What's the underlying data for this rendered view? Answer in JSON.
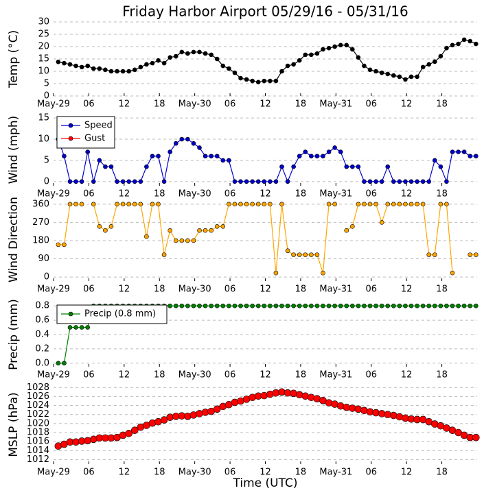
{
  "chart_data": [
    {
      "type": "line",
      "title": "Friday Harbor Airport 05/29/16 - 05/31/16",
      "ylabel": "Temp (°C)",
      "x": [
        0.8,
        1.8,
        2.8,
        3.8,
        4.8,
        5.8,
        6.8,
        7.8,
        8.8,
        9.8,
        10.8,
        11.8,
        12.8,
        13.8,
        14.8,
        15.8,
        16.8,
        17.8,
        18.8,
        19.8,
        20.8,
        21.8,
        22.8,
        23.8,
        24.8,
        25.8,
        26.8,
        27.8,
        28.8,
        29.8,
        30.8,
        31.8,
        32.8,
        33.8,
        34.8,
        35.8,
        36.8,
        37.8,
        38.8,
        39.8,
        40.8,
        41.8,
        42.8,
        43.8,
        44.8,
        45.8,
        46.8,
        47.8,
        48.8,
        49.8,
        50.8,
        51.8,
        52.8,
        53.8,
        54.8,
        55.8,
        56.8,
        57.8,
        58.8,
        59.8,
        60.8,
        61.8,
        62.8,
        63.8,
        64.8,
        65.8,
        66.8,
        67.8,
        68.8,
        69.8,
        70.8,
        71.8
      ],
      "series": [
        {
          "name": "Temp",
          "color": "#000000",
          "values": [
            13.8,
            13.3,
            12.8,
            12.2,
            11.7,
            12.2,
            11.1,
            11.1,
            10.6,
            10.0,
            10.0,
            10.0,
            10.0,
            10.6,
            11.7,
            12.8,
            13.3,
            14.4,
            13.3,
            15.6,
            16.1,
            17.8,
            17.2,
            17.8,
            17.8,
            17.2,
            16.7,
            15.0,
            12.2,
            11.1,
            9.4,
            7.2,
            6.7,
            6.1,
            5.6,
            6.1,
            6.1,
            6.1,
            10.0,
            12.2,
            12.8,
            14.4,
            16.7,
            16.7,
            17.2,
            18.9,
            19.4,
            20.0,
            20.6,
            20.6,
            18.9,
            15.6,
            12.2,
            10.6,
            10.0,
            9.4,
            8.9,
            8.3,
            7.8,
            6.7,
            7.8,
            7.8,
            11.7,
            12.8,
            13.9,
            16.1,
            19.4,
            20.6,
            21.1,
            22.8,
            22.2,
            21.1
          ]
        }
      ],
      "xlim": [
        0,
        72
      ],
      "xticks": [
        {
          "value": 0,
          "label": "May-29"
        },
        {
          "value": 6,
          "label": "06"
        },
        {
          "value": 12,
          "label": "12"
        },
        {
          "value": 18,
          "label": "18"
        },
        {
          "value": 24,
          "label": "May-30"
        },
        {
          "value": 30,
          "label": "06"
        },
        {
          "value": 36,
          "label": "12"
        },
        {
          "value": 42,
          "label": "18"
        },
        {
          "value": 48,
          "label": "May-31"
        },
        {
          "value": 54,
          "label": "06"
        },
        {
          "value": 60,
          "label": "12"
        },
        {
          "value": 66,
          "label": "18"
        }
      ],
      "ylim": [
        0,
        30
      ],
      "yticks": [
        0,
        5,
        10,
        15,
        20,
        25,
        30
      ],
      "grid": true
    },
    {
      "type": "line",
      "ylabel": "Wind (mph)",
      "legend": "upper left",
      "x": [
        0.8,
        1.8,
        2.8,
        3.8,
        4.8,
        5.8,
        6.8,
        7.8,
        8.8,
        9.8,
        10.8,
        11.8,
        12.8,
        13.8,
        14.8,
        15.8,
        16.8,
        17.8,
        18.8,
        19.8,
        20.8,
        21.8,
        22.8,
        23.8,
        24.8,
        25.8,
        26.8,
        27.8,
        28.8,
        29.8,
        30.8,
        31.8,
        32.8,
        33.8,
        34.8,
        35.8,
        36.8,
        37.8,
        38.8,
        39.8,
        40.8,
        41.8,
        42.8,
        43.8,
        44.8,
        45.8,
        46.8,
        47.8,
        48.8,
        49.8,
        50.8,
        51.8,
        52.8,
        53.8,
        54.8,
        55.8,
        56.8,
        57.8,
        58.8,
        59.8,
        60.8,
        61.8,
        62.8,
        63.8,
        64.8,
        65.8,
        66.8,
        67.8,
        68.8,
        69.8,
        70.8,
        71.8
      ],
      "series": [
        {
          "name": "Speed",
          "color": "#0000cc",
          "values": [
            10,
            6,
            0,
            0,
            0,
            7,
            0,
            5,
            3.5,
            3.5,
            0,
            0,
            0,
            0,
            0,
            3.5,
            6,
            6,
            0,
            7,
            9,
            10,
            10,
            9,
            8,
            6,
            6,
            6,
            5,
            5,
            0,
            0,
            0,
            0,
            0,
            0,
            0,
            0,
            3.5,
            0,
            3.5,
            6,
            7,
            6,
            6,
            6,
            7,
            8,
            7,
            3.5,
            3.5,
            3.5,
            0,
            0,
            0,
            0,
            3.5,
            0,
            0,
            0,
            0,
            0,
            0,
            0,
            5,
            3.5,
            0,
            7,
            7,
            7,
            6,
            6
          ]
        },
        {
          "name": "Gust",
          "color": "#ff0000",
          "values": [
            null,
            null,
            null,
            null,
            null,
            null,
            null,
            null,
            null,
            null,
            null,
            null,
            null,
            null,
            null,
            null,
            null,
            null,
            null,
            null,
            null,
            null,
            null,
            null,
            null,
            null,
            null,
            null,
            null,
            null,
            null,
            null,
            null,
            null,
            null,
            null,
            null,
            null,
            null,
            null,
            null,
            null,
            null,
            null,
            null,
            null,
            null,
            null,
            null,
            null,
            null,
            null,
            null,
            null,
            null,
            null,
            null,
            null,
            null,
            null,
            null,
            null,
            null,
            null,
            null,
            null,
            null,
            null,
            null,
            null,
            null,
            null
          ]
        }
      ],
      "xlim": [
        0,
        72
      ],
      "xticks": [
        {
          "value": 0,
          "label": "May-29"
        },
        {
          "value": 6,
          "label": "06"
        },
        {
          "value": 12,
          "label": "12"
        },
        {
          "value": 18,
          "label": "18"
        },
        {
          "value": 24,
          "label": "May-30"
        },
        {
          "value": 30,
          "label": "06"
        },
        {
          "value": 36,
          "label": "12"
        },
        {
          "value": 42,
          "label": "18"
        },
        {
          "value": 48,
          "label": "May-31"
        },
        {
          "value": 54,
          "label": "06"
        },
        {
          "value": 60,
          "label": "12"
        },
        {
          "value": 66,
          "label": "18"
        }
      ],
      "ylim": [
        -1,
        16
      ],
      "yticks": [
        0,
        5,
        10,
        15
      ],
      "grid": true
    },
    {
      "type": "line",
      "ylabel": "Wind Direction",
      "x": [
        0.8,
        1.8,
        2.8,
        3.8,
        4.8,
        5.8,
        6.8,
        7.8,
        8.8,
        9.8,
        10.8,
        11.8,
        12.8,
        13.8,
        14.8,
        15.8,
        16.8,
        17.8,
        18.8,
        19.8,
        20.8,
        21.8,
        22.8,
        23.8,
        24.8,
        25.8,
        26.8,
        27.8,
        28.8,
        29.8,
        30.8,
        31.8,
        32.8,
        33.8,
        34.8,
        35.8,
        36.8,
        37.8,
        38.8,
        39.8,
        40.8,
        41.8,
        42.8,
        43.8,
        44.8,
        45.8,
        46.8,
        47.8,
        48.8,
        49.8,
        50.8,
        51.8,
        52.8,
        53.8,
        54.8,
        55.8,
        56.8,
        57.8,
        58.8,
        59.8,
        60.8,
        61.8,
        62.8,
        63.8,
        64.8,
        65.8,
        66.8,
        67.8,
        68.8,
        69.8,
        70.8,
        71.8
      ],
      "series": [
        {
          "name": "Direction",
          "color": "#ffa500",
          "values": [
            160,
            160,
            360,
            360,
            360,
            null,
            360,
            250,
            230,
            250,
            360,
            360,
            360,
            360,
            360,
            200,
            360,
            360,
            110,
            230,
            180,
            180,
            180,
            180,
            230,
            230,
            230,
            250,
            250,
            360,
            360,
            360,
            360,
            360,
            360,
            360,
            360,
            20,
            360,
            130,
            110,
            110,
            110,
            110,
            110,
            20,
            360,
            360,
            null,
            230,
            250,
            360,
            360,
            360,
            360,
            270,
            360,
            360,
            360,
            360,
            360,
            360,
            360,
            110,
            110,
            360,
            360,
            20,
            null,
            null,
            110,
            110
          ]
        }
      ],
      "xlim": [
        0,
        72
      ],
      "xticks": [
        {
          "value": 0,
          "label": "May-29"
        },
        {
          "value": 6,
          "label": "06"
        },
        {
          "value": 12,
          "label": "12"
        },
        {
          "value": 18,
          "label": "18"
        },
        {
          "value": 24,
          "label": "May-30"
        },
        {
          "value": 30,
          "label": "06"
        },
        {
          "value": 36,
          "label": "12"
        },
        {
          "value": 42,
          "label": "18"
        },
        {
          "value": 48,
          "label": "May-31"
        },
        {
          "value": 54,
          "label": "06"
        },
        {
          "value": 60,
          "label": "12"
        },
        {
          "value": 66,
          "label": "18"
        }
      ],
      "ylim": [
        -20,
        390
      ],
      "yticks": [
        0,
        90,
        180,
        270,
        360
      ],
      "grid": true
    },
    {
      "type": "line",
      "ylabel": "Precip (mm)",
      "legend": "upper left",
      "x": [
        0.8,
        1.8,
        2.8,
        3.8,
        4.8,
        5.8,
        6.8,
        7.8,
        8.8,
        9.8,
        10.8,
        11.8,
        12.8,
        13.8,
        14.8,
        15.8,
        16.8,
        17.8,
        18.8,
        19.8,
        20.8,
        21.8,
        22.8,
        23.8,
        24.8,
        25.8,
        26.8,
        27.8,
        28.8,
        29.8,
        30.8,
        31.8,
        32.8,
        33.8,
        34.8,
        35.8,
        36.8,
        37.8,
        38.8,
        39.8,
        40.8,
        41.8,
        42.8,
        43.8,
        44.8,
        45.8,
        46.8,
        47.8,
        48.8,
        49.8,
        50.8,
        51.8,
        52.8,
        53.8,
        54.8,
        55.8,
        56.8,
        57.8,
        58.8,
        59.8,
        60.8,
        61.8,
        62.8,
        63.8,
        64.8,
        65.8,
        66.8,
        67.8,
        68.8,
        69.8,
        70.8,
        71.8
      ],
      "series": [
        {
          "name": "Precip (0.8 mm)",
          "color": "#008000",
          "values": [
            0,
            0,
            0.5,
            0.5,
            0.5,
            0.5,
            0.8,
            0.8,
            0.8,
            0.8,
            0.8,
            0.8,
            0.8,
            0.8,
            0.8,
            0.8,
            0.8,
            0.8,
            0.8,
            0.8,
            0.8,
            0.8,
            0.8,
            0.8,
            0.8,
            0.8,
            0.8,
            0.8,
            0.8,
            0.8,
            0.8,
            0.8,
            0.8,
            0.8,
            0.8,
            0.8,
            0.8,
            0.8,
            0.8,
            0.8,
            0.8,
            0.8,
            0.8,
            0.8,
            0.8,
            0.8,
            0.8,
            0.8,
            0.8,
            0.8,
            0.8,
            0.8,
            0.8,
            0.8,
            0.8,
            0.8,
            0.8,
            0.8,
            0.8,
            0.8,
            0.8,
            0.8,
            0.8,
            0.8,
            0.8,
            0.8,
            0.8,
            0.8,
            0.8,
            0.8,
            0.8,
            0.8
          ]
        }
      ],
      "xlim": [
        0,
        72
      ],
      "xticks": [
        {
          "value": 0,
          "label": "May-29"
        },
        {
          "value": 6,
          "label": "06"
        },
        {
          "value": 12,
          "label": "12"
        },
        {
          "value": 18,
          "label": "18"
        },
        {
          "value": 24,
          "label": "May-30"
        },
        {
          "value": 30,
          "label": "06"
        },
        {
          "value": 36,
          "label": "12"
        },
        {
          "value": 42,
          "label": "18"
        },
        {
          "value": 48,
          "label": "May-31"
        },
        {
          "value": 54,
          "label": "06"
        },
        {
          "value": 60,
          "label": "12"
        },
        {
          "value": 66,
          "label": "18"
        }
      ],
      "ylim": [
        -0.05,
        0.85
      ],
      "yticks": [
        {
          "value": 0,
          "label": "0.0"
        },
        0.2,
        0.4,
        0.6,
        0.8
      ],
      "grid": true
    },
    {
      "type": "line",
      "ylabel": "MSLP (hPa)",
      "xlabel": "Time (UTC)",
      "x": [
        0.8,
        1.8,
        2.8,
        3.8,
        4.8,
        5.8,
        6.8,
        7.8,
        8.8,
        9.8,
        10.8,
        11.8,
        12.8,
        13.8,
        14.8,
        15.8,
        16.8,
        17.8,
        18.8,
        19.8,
        20.8,
        21.8,
        22.8,
        23.8,
        24.8,
        25.8,
        26.8,
        27.8,
        28.8,
        29.8,
        30.8,
        31.8,
        32.8,
        33.8,
        34.8,
        35.8,
        36.8,
        37.8,
        38.8,
        39.8,
        40.8,
        41.8,
        42.8,
        43.8,
        44.8,
        45.8,
        46.8,
        47.8,
        48.8,
        49.8,
        50.8,
        51.8,
        52.8,
        53.8,
        54.8,
        55.8,
        56.8,
        57.8,
        58.8,
        59.8,
        60.8,
        61.8,
        62.8,
        63.8,
        64.8,
        65.8,
        66.8,
        67.8,
        68.8,
        69.8,
        70.8,
        71.8
      ],
      "series": [
        {
          "name": "MSLP",
          "color": "#ff0000",
          "values": [
            1015.0,
            1015.4,
            1015.9,
            1015.9,
            1016.1,
            1016.2,
            1016.5,
            1016.8,
            1016.8,
            1016.8,
            1016.9,
            1017.4,
            1017.8,
            1018.5,
            1019.2,
            1019.6,
            1020.1,
            1020.4,
            1020.8,
            1021.4,
            1021.6,
            1021.7,
            1021.6,
            1021.9,
            1022.2,
            1022.5,
            1022.7,
            1023.2,
            1023.8,
            1024.2,
            1024.7,
            1025.0,
            1025.4,
            1025.8,
            1026.1,
            1026.2,
            1026.5,
            1026.8,
            1027.0,
            1026.8,
            1026.7,
            1026.4,
            1026.1,
            1025.8,
            1025.5,
            1025.1,
            1024.6,
            1024.3,
            1023.9,
            1023.6,
            1023.4,
            1023.2,
            1022.9,
            1022.6,
            1022.4,
            1022.2,
            1022.0,
            1021.8,
            1021.5,
            1021.2,
            1021.0,
            1020.9,
            1020.9,
            1020.4,
            1019.9,
            1019.5,
            1019.0,
            1018.5,
            1018.0,
            1017.4,
            1016.9,
            1016.9
          ]
        }
      ],
      "xlim": [
        0,
        72
      ],
      "xticks": [
        {
          "value": 0,
          "label": "May-29"
        },
        {
          "value": 6,
          "label": "06"
        },
        {
          "value": 12,
          "label": "12"
        },
        {
          "value": 18,
          "label": "18"
        },
        {
          "value": 24,
          "label": "May-30"
        },
        {
          "value": 30,
          "label": "06"
        },
        {
          "value": 36,
          "label": "12"
        },
        {
          "value": 42,
          "label": "18"
        },
        {
          "value": 48,
          "label": "May-31"
        },
        {
          "value": 54,
          "label": "06"
        },
        {
          "value": 60,
          "label": "12"
        },
        {
          "value": 66,
          "label": "18"
        }
      ],
      "ylim": [
        1011,
        1028.5
      ],
      "yticks": [
        1012,
        1014,
        1016,
        1018,
        1020,
        1022,
        1024,
        1026,
        1028
      ],
      "grid": true
    }
  ]
}
